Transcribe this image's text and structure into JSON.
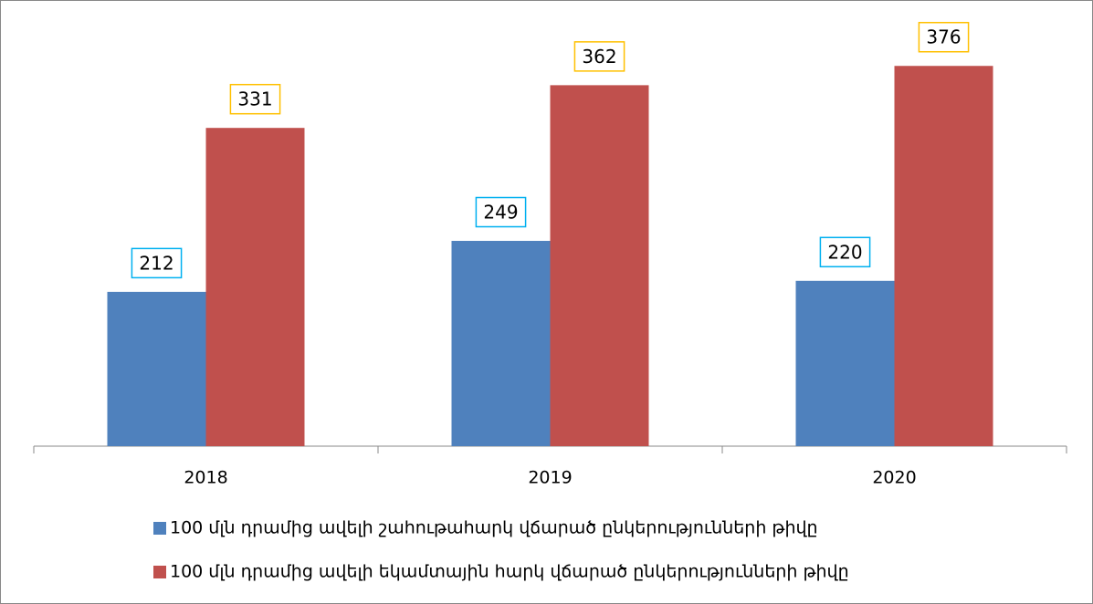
{
  "chart_data": {
    "type": "bar",
    "categories": [
      "2018",
      "2019",
      "2020"
    ],
    "series": [
      {
        "name": "100 մլն դրամից ավելի շահութահարկ վճարած ընկերությունների թիվը",
        "color": "#4f81bd",
        "label_border": "#00b0f0",
        "values": [
          212,
          249,
          220
        ]
      },
      {
        "name": "100 մլն դրամից ավելի եկամտային հարկ վճարած ընկերությունների թիվը",
        "color": "#c0504d",
        "label_border": "#ffc000",
        "values": [
          331,
          362,
          376
        ]
      }
    ],
    "ylim": [
      100,
      400
    ],
    "grid": false,
    "legend": "bottom"
  }
}
